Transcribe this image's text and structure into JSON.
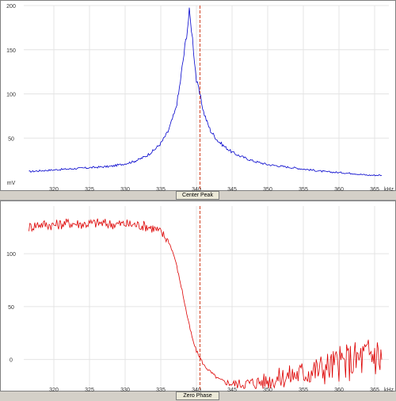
{
  "panels": [
    {
      "button_label": "Center Peak",
      "x_unit": "kHz",
      "y_unit": "mV"
    },
    {
      "button_label": "Zero Phase",
      "x_unit": "kHz",
      "y_unit": ""
    }
  ],
  "chart_data": [
    {
      "type": "line",
      "x_ticks": [
        320,
        325,
        330,
        335,
        340,
        345,
        350,
        355,
        360,
        365
      ],
      "y_ticks": [
        50,
        100,
        150,
        200
      ],
      "xlim": [
        316,
        367
      ],
      "ylim": [
        0,
        200
      ],
      "xlabel": "kHz",
      "ylabel": "mV",
      "grid": true,
      "marker_x": 340.5,
      "marker_color": "#d04020",
      "series": [
        {
          "color": "#0000cc",
          "x": [
            316.5,
            318,
            320,
            322,
            324,
            326,
            328,
            330,
            331,
            332,
            333,
            334,
            335,
            336,
            337,
            337.5,
            338,
            338.5,
            339,
            339.3,
            339.6,
            340,
            340.3,
            340.6,
            341,
            341.5,
            342,
            343,
            344,
            345,
            346,
            348,
            350,
            352,
            354,
            356,
            358,
            360,
            362,
            364,
            366
          ],
          "y": [
            12,
            13,
            14,
            15,
            16,
            17,
            18,
            21,
            23,
            26,
            30,
            36,
            44,
            57,
            80,
            100,
            130,
            160,
            192,
            175,
            150,
            115,
            105,
            95,
            80,
            68,
            58,
            47,
            40,
            34,
            30,
            24,
            20,
            18,
            16,
            14,
            12,
            11,
            10,
            8,
            8
          ]
        }
      ]
    },
    {
      "type": "line",
      "x_ticks": [
        320,
        325,
        330,
        335,
        340,
        345,
        350,
        355,
        360,
        365
      ],
      "y_ticks": [
        0,
        50,
        100
      ],
      "xlim": [
        316,
        367
      ],
      "ylim": [
        -22,
        145
      ],
      "xlabel": "kHz",
      "grid": true,
      "marker_x": 340.5,
      "marker_color": "#d04020",
      "series": [
        {
          "color": "#dd0000",
          "x": [
            316.5,
            318,
            320,
            322,
            324,
            326,
            328,
            330,
            332,
            333,
            334,
            335,
            336,
            336.5,
            337,
            337.5,
            338,
            338.5,
            339,
            339.5,
            340,
            340.5,
            341,
            342,
            343,
            344,
            345,
            346,
            348,
            350,
            352,
            354,
            356,
            358,
            360,
            362,
            364,
            365,
            366
          ],
          "y": [
            125,
            128,
            127,
            129,
            128,
            129,
            128,
            128,
            127,
            126,
            124,
            120,
            113,
            105,
            95,
            80,
            65,
            48,
            32,
            18,
            8,
            2,
            -5,
            -12,
            -18,
            -21,
            -23,
            -23,
            -22,
            -20,
            -17,
            -14,
            -11,
            -8,
            -4,
            -1,
            3,
            6,
            0
          ]
        }
      ]
    }
  ]
}
